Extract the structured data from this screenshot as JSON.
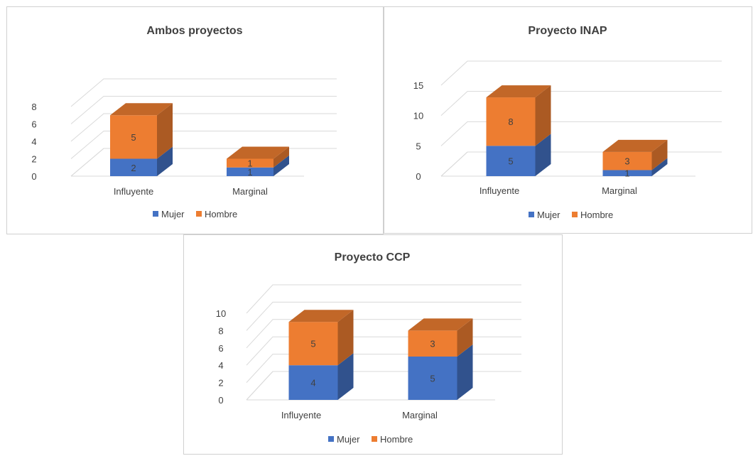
{
  "chart_data": [
    {
      "type": "bar",
      "stacked": true,
      "three_d": true,
      "title": "Ambos proyectos",
      "categories": [
        "Influyente",
        "Marginal"
      ],
      "series": [
        {
          "name": "Mujer",
          "values": [
            2,
            1
          ],
          "color": "#4472C4"
        },
        {
          "name": "Hombre",
          "values": [
            5,
            1
          ],
          "color": "#ED7D31"
        }
      ],
      "ylim": [
        0,
        8
      ],
      "yticks": [
        "0",
        "2",
        "4",
        "6",
        "8"
      ],
      "legend_position": "bottom",
      "grid": true
    },
    {
      "type": "bar",
      "stacked": true,
      "three_d": true,
      "title": "Proyecto INAP",
      "categories": [
        "Influyente",
        "Marginal"
      ],
      "series": [
        {
          "name": "Mujer",
          "values": [
            5,
            1
          ],
          "color": "#4472C4"
        },
        {
          "name": "Hombre",
          "values": [
            8,
            3
          ],
          "color": "#ED7D31"
        }
      ],
      "ylim": [
        0,
        15
      ],
      "yticks": [
        "0",
        "5",
        "10",
        "15"
      ],
      "legend_position": "bottom",
      "grid": true
    },
    {
      "type": "bar",
      "stacked": true,
      "three_d": true,
      "title": "Proyecto CCP",
      "categories": [
        "Influyente",
        "Marginal"
      ],
      "series": [
        {
          "name": "Mujer",
          "values": [
            4,
            5
          ],
          "color": "#4472C4"
        },
        {
          "name": "Hombre",
          "values": [
            5,
            3
          ],
          "color": "#ED7D31"
        }
      ],
      "ylim": [
        0,
        10
      ],
      "yticks": [
        "0",
        "2",
        "4",
        "6",
        "8",
        "10"
      ],
      "legend_position": "bottom",
      "grid": true
    }
  ]
}
